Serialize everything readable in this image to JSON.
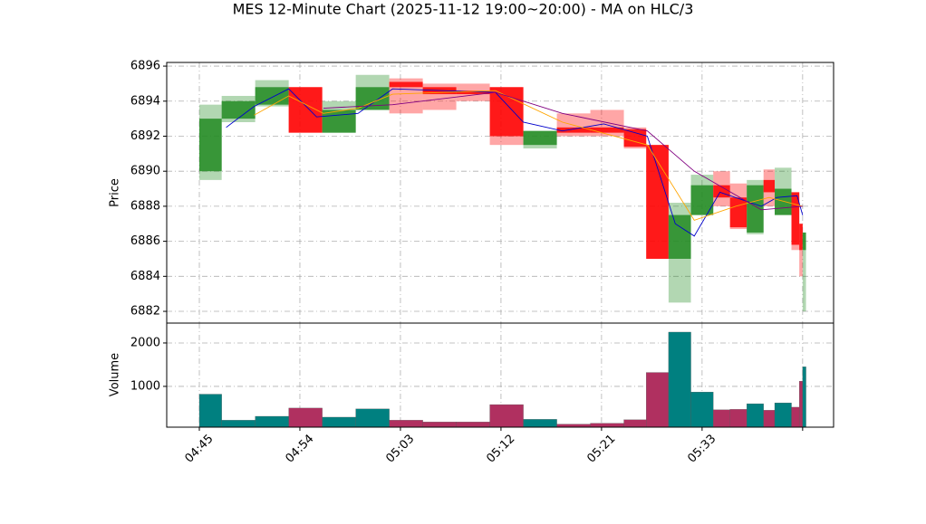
{
  "chart_data": {
    "type": "candlestick",
    "title": "MES 12-Minute Chart (2025-11-12 19:00~20:00) - MA on HLC/3",
    "y_label": "Price",
    "volume_label": "Volume",
    "xlim": [
      -2.92,
      56.77
    ],
    "xticks": [
      {
        "value": 0,
        "label": "04:45"
      },
      {
        "value": 9,
        "label": "04:54"
      },
      {
        "value": 18,
        "label": "05:03"
      },
      {
        "value": 27,
        "label": "05:12"
      },
      {
        "value": 36,
        "label": "05:21"
      },
      {
        "value": 45,
        "label": "05:33"
      },
      {
        "value": 54,
        "label": null
      }
    ],
    "ylim": [
      6881.33,
      6896.21
    ],
    "yticks": [
      6882,
      6884,
      6886,
      6888,
      6890,
      6892,
      6894,
      6896
    ],
    "volume_ylim": [
      60,
      2458
    ],
    "volume_yticks": [
      1000,
      2000
    ],
    "grid": true,
    "up_color": "#228b22",
    "down_color": "#ff0000",
    "volume_up_color": "#008080",
    "volume_down_color": "#b03060",
    "candles": [
      {
        "x0": 0,
        "x1": 2,
        "open": 6890,
        "high": 6893.8,
        "low": 6889.5,
        "close": 6893,
        "volume": 820
      },
      {
        "x0": 2,
        "x1": 5,
        "open": 6893,
        "high": 6894.3,
        "low": 6892.8,
        "close": 6894,
        "volume": 220
      },
      {
        "x0": 5,
        "x1": 8,
        "open": 6893.8,
        "high": 6895.2,
        "low": 6893.7,
        "close": 6894.8,
        "volume": 310
      },
      {
        "x0": 8,
        "x1": 11,
        "open": 6894.8,
        "high": 6894.8,
        "low": 6892.2,
        "close": 6892.2,
        "volume": 500
      },
      {
        "x0": 11,
        "x1": 14,
        "open": 6892.2,
        "high": 6894,
        "low": 6892.2,
        "close": 6893.5,
        "volume": 290
      },
      {
        "x0": 14,
        "x1": 17,
        "open": 6893.5,
        "high": 6895.5,
        "low": 6893.5,
        "close": 6894.8,
        "volume": 480
      },
      {
        "x0": 17,
        "x1": 20,
        "open": 6895.1,
        "high": 6895.3,
        "low": 6893.3,
        "close": 6894.8,
        "volume": 220
      },
      {
        "x0": 20,
        "x1": 23,
        "open": 6894.8,
        "high": 6895,
        "low": 6893.5,
        "close": 6894.4,
        "volume": 180
      },
      {
        "x0": 23,
        "x1": 26,
        "open": 6894.6,
        "high": 6895,
        "low": 6894,
        "close": 6894.4,
        "volume": 180
      },
      {
        "x0": 26,
        "x1": 29,
        "open": 6894.8,
        "high": 6894.8,
        "low": 6891.5,
        "close": 6892,
        "volume": 580
      },
      {
        "x0": 29,
        "x1": 32,
        "open": 6891.5,
        "high": 6892.3,
        "low": 6891.3,
        "close": 6892.3,
        "volume": 240
      },
      {
        "x0": 32,
        "x1": 35,
        "open": 6892.5,
        "high": 6893.3,
        "low": 6892,
        "close": 6892.2,
        "volume": 130
      },
      {
        "x0": 35,
        "x1": 38,
        "open": 6892.5,
        "high": 6893.5,
        "low": 6892,
        "close": 6892.2,
        "volume": 150
      },
      {
        "x0": 38,
        "x1": 40,
        "open": 6892.4,
        "high": 6892.5,
        "low": 6891.3,
        "close": 6891.4,
        "volume": 230
      },
      {
        "x0": 40,
        "x1": 42,
        "open": 6891.5,
        "high": 6891.5,
        "low": 6885,
        "close": 6885,
        "volume": 1320
      },
      {
        "x0": 42,
        "x1": 44,
        "open": 6885,
        "high": 6888.2,
        "low": 6882.5,
        "close": 6887.5,
        "volume": 2250
      },
      {
        "x0": 44,
        "x1": 46,
        "open": 6887.5,
        "high": 6889.8,
        "low": 6887.5,
        "close": 6889.2,
        "volume": 870
      },
      {
        "x0": 46,
        "x1": 47.5,
        "open": 6889.2,
        "high": 6890,
        "low": 6888,
        "close": 6888.5,
        "volume": 460
      },
      {
        "x0": 47.5,
        "x1": 49,
        "open": 6888.5,
        "high": 6889.3,
        "low": 6886.7,
        "close": 6886.8,
        "volume": 470
      },
      {
        "x0": 49,
        "x1": 50.5,
        "open": 6886.5,
        "high": 6889.5,
        "low": 6886.4,
        "close": 6889.2,
        "volume": 600
      },
      {
        "x0": 50.5,
        "x1": 51.5,
        "open": 6889.5,
        "high": 6890.1,
        "low": 6888,
        "close": 6888.8,
        "volume": 450
      },
      {
        "x0": 51.5,
        "x1": 53,
        "open": 6887.5,
        "high": 6890.2,
        "low": 6887.5,
        "close": 6889,
        "volume": 620
      },
      {
        "x0": 53,
        "x1": 53.7,
        "open": 6888.8,
        "high": 6888.8,
        "low": 6885.5,
        "close": 6885.8,
        "volume": 520
      },
      {
        "x0": 53.7,
        "x1": 54,
        "open": 6887,
        "high": 6887,
        "low": 6884,
        "close": 6885.5,
        "volume": 1120
      },
      {
        "x0": 54,
        "x1": 54.3,
        "open": 6885.5,
        "high": 6886.5,
        "low": 6882,
        "close": 6886.5,
        "volume": 1450
      }
    ],
    "ma_lines": [
      {
        "color": "#0000cc",
        "x": [
          2.4,
          4.9,
          8.0,
          10.5,
          14.2,
          17.3,
          26.5,
          29.0,
          32.5,
          36.2,
          40.1,
          42.6,
          44.3,
          46.6,
          50.3,
          51.7,
          53.5,
          54.0
        ],
        "values": [
          6892.5,
          6893.7,
          6894.7,
          6893.1,
          6893.3,
          6894.7,
          6894.5,
          6892.8,
          6892.3,
          6892.7,
          6892,
          6887,
          6886.3,
          6888.8,
          6888,
          6888.5,
          6888.6,
          6887.5
        ]
      },
      {
        "color": "#ffa500",
        "x": [
          4.9,
          8.0,
          11.1,
          14.2,
          17.3,
          26.5,
          32.5,
          40.1,
          44.3,
          48,
          51,
          54
        ],
        "values": [
          6893.2,
          6894.3,
          6893.3,
          6893.6,
          6894.4,
          6894.6,
          6892.8,
          6891.5,
          6887.2,
          6888,
          6888.5,
          6888
        ]
      },
      {
        "color": "#800080",
        "x": [
          11.1,
          17.3,
          26.5,
          32.5,
          40.1,
          44.3,
          50.3,
          54.0
        ],
        "values": [
          6893.6,
          6893.8,
          6894.5,
          6893.3,
          6892.3,
          6890,
          6887.8,
          6888
        ]
      }
    ]
  }
}
